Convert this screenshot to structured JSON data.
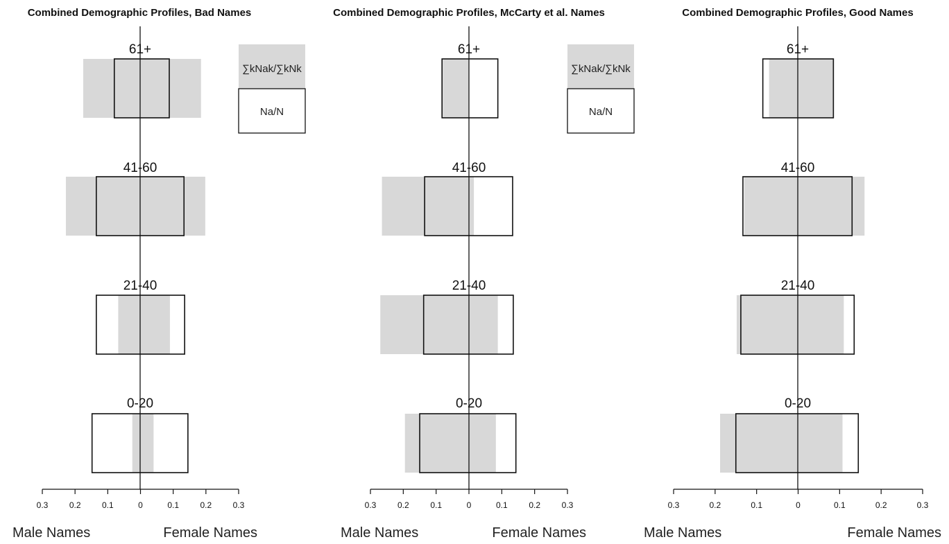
{
  "chart_data": [
    {
      "type": "bar",
      "title": "Combined Demographic Profiles, Bad Names",
      "categories": [
        "61+",
        "41-60",
        "21-40",
        "0-20"
      ],
      "xlabel_left": "Male Names",
      "xlabel_right": "Female Names",
      "xlim": [
        -0.3,
        0.3
      ],
      "ticks": [
        "0.3",
        "0.2",
        "0.1",
        "0",
        "0.1",
        "0.2",
        "0.3"
      ],
      "series": [
        {
          "name": "Σk Nak / Σk Nk",
          "style": "gray-filled",
          "male": [
            0.175,
            0.228,
            0.068,
            0.025
          ],
          "female": [
            0.185,
            0.198,
            0.09,
            0.04
          ]
        },
        {
          "name": "Na / N",
          "style": "black-outline",
          "male": [
            0.08,
            0.135,
            0.135,
            0.148
          ],
          "female": [
            0.088,
            0.133,
            0.135,
            0.145
          ]
        }
      ],
      "legend": {
        "line1": "∑kNak/∑kNk",
        "line2": "Na/N"
      }
    },
    {
      "type": "bar",
      "title": "Combined Demographic Profiles, McCarty et al. Names",
      "categories": [
        "61+",
        "41-60",
        "21-40",
        "0-20"
      ],
      "xlabel_left": "Male Names",
      "xlabel_right": "Female Names",
      "xlim": [
        -0.3,
        0.3
      ],
      "ticks": [
        "0.3",
        "0.2",
        "0.1",
        "0",
        "0.1",
        "0.2",
        "0.3"
      ],
      "series": [
        {
          "name": "Σk Nak / Σk Nk",
          "style": "gray-filled",
          "male": [
            0.08,
            0.265,
            0.27,
            0.195
          ],
          "female": [
            0.0,
            0.015,
            0.088,
            0.082
          ]
        },
        {
          "name": "Na / N",
          "style": "black-outline",
          "male": [
            0.082,
            0.135,
            0.138,
            0.15
          ],
          "female": [
            0.088,
            0.133,
            0.135,
            0.143
          ]
        }
      ],
      "legend": {
        "line1": "∑kNak/∑kNk",
        "line2": "Na/N"
      }
    },
    {
      "type": "bar",
      "title": "Combined Demographic Profiles, Good Names",
      "categories": [
        "61+",
        "41-60",
        "21-40",
        "0-20"
      ],
      "xlabel_left": "Male Names",
      "xlabel_right": "Female Names",
      "xlim": [
        -0.3,
        0.3
      ],
      "ticks": [
        "0.3",
        "0.2",
        "0.1",
        "0",
        "0.1",
        "0.2",
        "0.3"
      ],
      "series": [
        {
          "name": "Σk Nak / Σk Nk",
          "style": "gray-filled",
          "male": [
            0.07,
            0.13,
            0.148,
            0.188
          ],
          "female": [
            0.085,
            0.16,
            0.11,
            0.107
          ]
        },
        {
          "name": "Na / N",
          "style": "black-outline",
          "male": [
            0.085,
            0.133,
            0.138,
            0.15
          ],
          "female": [
            0.085,
            0.13,
            0.135,
            0.145
          ]
        }
      ]
    }
  ]
}
